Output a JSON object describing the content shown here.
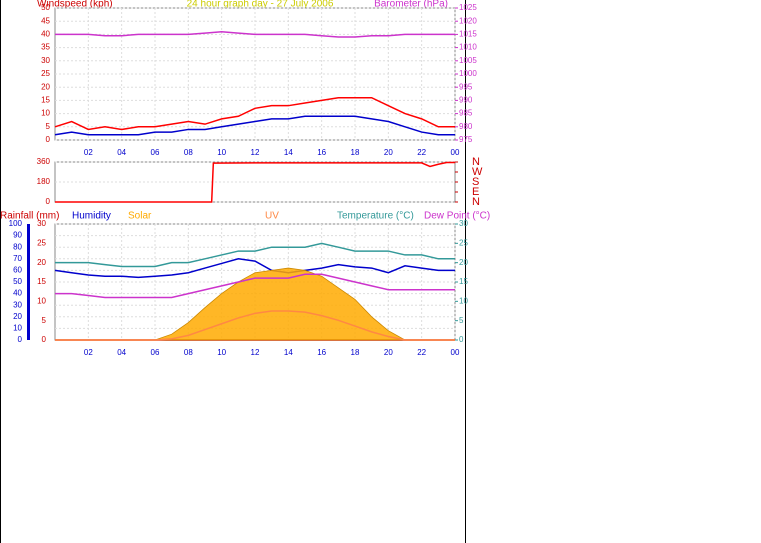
{
  "chart_data": [
    {
      "type": "line",
      "title": "24 hour graph day - 27 July 2006",
      "ylabel": "Windspeed (kph)",
      "y2label": "Barometer (hPa)",
      "x": [
        0,
        1,
        2,
        3,
        4,
        5,
        6,
        7,
        8,
        9,
        10,
        11,
        12,
        13,
        14,
        15,
        16,
        17,
        18,
        19,
        20,
        21,
        22,
        23,
        24
      ],
      "xlim": [
        0,
        24
      ],
      "xticks": [
        {
          "value": 2,
          "label": "02"
        },
        {
          "value": 4,
          "label": "04"
        },
        {
          "value": 6,
          "label": "06"
        },
        {
          "value": 8,
          "label": "08"
        },
        10,
        12,
        14,
        16,
        18,
        20,
        22,
        {
          "value": 24,
          "label": "00"
        }
      ],
      "ylim": [
        0,
        50
      ],
      "yticks": [
        0,
        5,
        10,
        15,
        20,
        25,
        30,
        35,
        40,
        45,
        50
      ],
      "y2lim": [
        975,
        1025
      ],
      "y2ticks": [
        975,
        980,
        985,
        990,
        995,
        1000,
        1005,
        1010,
        1015,
        1020,
        1025
      ],
      "grid": true,
      "series": [
        {
          "color": "#ff0000",
          "values": [
            5,
            7,
            4,
            5,
            4,
            5,
            5,
            6,
            7,
            6,
            8,
            9,
            12,
            13,
            13,
            14,
            15,
            16,
            16,
            16,
            13,
            10,
            8,
            5,
            5
          ]
        },
        {
          "color": "#0000cc",
          "values": [
            2,
            3,
            2,
            2,
            2,
            2,
            3,
            3,
            4,
            4,
            5,
            6,
            7,
            8,
            8,
            9,
            9,
            9,
            9,
            8,
            7,
            5,
            3,
            2,
            2
          ]
        },
        {
          "color": "#cc33cc",
          "axis": "y2",
          "values": [
            1015,
            1015,
            1015,
            1014.5,
            1014.5,
            1015,
            1015,
            1015,
            1015,
            1015.5,
            1016,
            1015.5,
            1015,
            1015,
            1015,
            1015,
            1014.5,
            1014,
            1014,
            1014.5,
            1014.5,
            1015,
            1015,
            1015,
            1015
          ]
        }
      ]
    },
    {
      "type": "line",
      "x": [
        0,
        9.4,
        9.5,
        12,
        22,
        22.5,
        23,
        23.5,
        24
      ],
      "xlim": [
        0,
        24
      ],
      "ylim": [
        0,
        360
      ],
      "yticks": [
        0,
        180,
        360
      ],
      "y2lim": [
        0,
        360
      ],
      "y2ticks": [
        {
          "value": 360,
          "label": "N"
        },
        {
          "value": 270,
          "label": "W"
        },
        {
          "value": 180,
          "label": "S"
        },
        {
          "value": 90,
          "label": "E"
        },
        {
          "value": 0,
          "label": "N"
        }
      ],
      "grid": true,
      "series": [
        {
          "color": "#ff0000",
          "values": [
            0,
            0,
            350,
            352,
            352,
            320,
            340,
            355,
            355
          ]
        }
      ]
    },
    {
      "type": "line",
      "x": [
        0,
        1,
        2,
        3,
        4,
        5,
        6,
        7,
        8,
        9,
        10,
        11,
        12,
        13,
        14,
        15,
        16,
        17,
        18,
        19,
        20,
        21,
        22,
        23,
        24
      ],
      "xlim": [
        0,
        24
      ],
      "xticks": [
        {
          "value": 2,
          "label": "02"
        },
        {
          "value": 4,
          "label": "04"
        },
        {
          "value": 6,
          "label": "06"
        },
        {
          "value": 8,
          "label": "08"
        },
        10,
        12,
        14,
        16,
        18,
        20,
        22,
        {
          "value": 24,
          "label": "00"
        }
      ],
      "ylim": [
        0,
        100
      ],
      "yticks": [
        0,
        10,
        20,
        30,
        40,
        50,
        60,
        70,
        80,
        90,
        100
      ],
      "y2lim": [
        0,
        30
      ],
      "y2ticks": [
        0,
        5,
        10,
        15,
        20,
        25,
        30
      ],
      "y3lim": [
        0,
        30
      ],
      "y3ticks": [
        0,
        5,
        10,
        15,
        20,
        25,
        30
      ],
      "grid": true,
      "series": [
        {
          "name": "Rainfall (mm)",
          "color": "#cc0000",
          "axis": "y3",
          "values": [
            0,
            0,
            0,
            0,
            0,
            0,
            0,
            0,
            0,
            0,
            0,
            0,
            0,
            0,
            0,
            0,
            0,
            0,
            0,
            0,
            0,
            0,
            0,
            0,
            0
          ]
        },
        {
          "name": "Humidity",
          "color": "#0000cc",
          "values": [
            60,
            58,
            56,
            55,
            55,
            54,
            55,
            56,
            58,
            62,
            66,
            70,
            68,
            60,
            58,
            60,
            62,
            65,
            63,
            62,
            58,
            64,
            62,
            60,
            60
          ]
        },
        {
          "name": "Solar",
          "color": "#ffaa00",
          "fill": true,
          "values": [
            0,
            0,
            0,
            0,
            0,
            0,
            0,
            5,
            15,
            28,
            40,
            50,
            58,
            60,
            62,
            60,
            55,
            45,
            35,
            20,
            8,
            0,
            0,
            0,
            0
          ]
        },
        {
          "name": "UV",
          "color": "#ff8844",
          "values": [
            0,
            0,
            0,
            0,
            0,
            0,
            0,
            1,
            4,
            9,
            14,
            19,
            23,
            25,
            25,
            24,
            21,
            17,
            12,
            7,
            3,
            0,
            0,
            0,
            0
          ]
        },
        {
          "name": "Temperature (°C)",
          "color": "#339999",
          "axis": "y2",
          "values": [
            20,
            20,
            20,
            19.5,
            19,
            19,
            19,
            20,
            20,
            21,
            22,
            23,
            23,
            24,
            24,
            24,
            25,
            24,
            23,
            23,
            23,
            22,
            22,
            21,
            21
          ]
        },
        {
          "name": "Dew Point (°C)",
          "color": "#cc33cc",
          "axis": "y2",
          "values": [
            12,
            12,
            11.5,
            11,
            11,
            11,
            11,
            11,
            12,
            13,
            14,
            15,
            16,
            16,
            16,
            17,
            17,
            16,
            15,
            14,
            13,
            13,
            13,
            13,
            13
          ]
        }
      ]
    }
  ]
}
